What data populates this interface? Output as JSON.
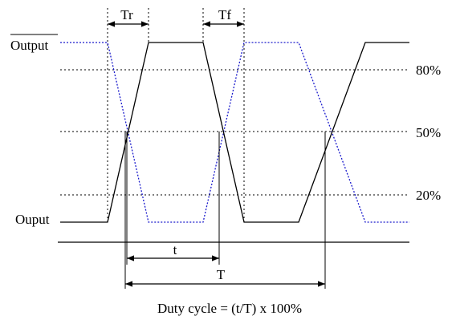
{
  "labels": {
    "tr": "Tr",
    "tf": "Tf",
    "output_bar": "Output",
    "ouput": "Ouput",
    "p80": "80%",
    "p50": "50%",
    "p20": "20%",
    "t": "t",
    "T": "T",
    "formula": "Duty cycle = (t/T) x 100%"
  },
  "colors": {
    "output_wave": "#000000",
    "output_bar_wave": "#1a1acc",
    "guide_lines": "#000000"
  }
}
